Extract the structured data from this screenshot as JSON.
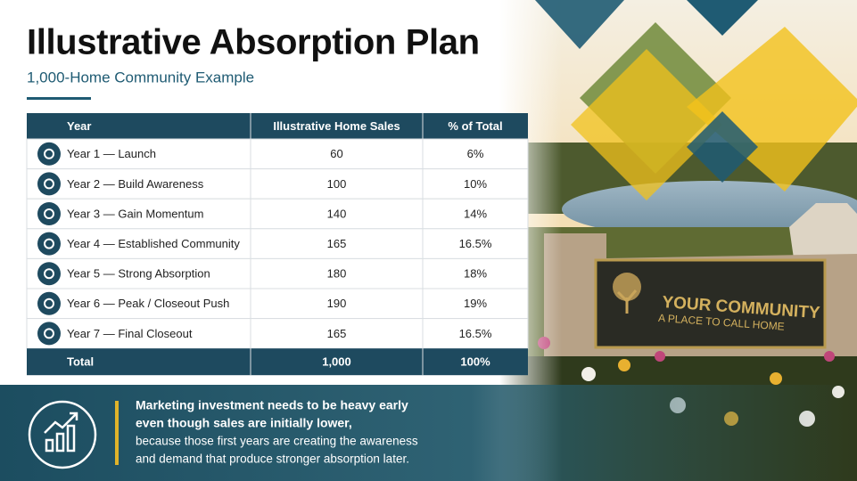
{
  "header": {
    "title": "Illustrative Absorption Plan",
    "subtitle": "1,000-Home Community Example"
  },
  "table": {
    "columns": [
      "Year",
      "Illustrative Home Sales",
      "% of Total"
    ],
    "rows": [
      [
        "Year 1 — Launch",
        "60",
        "6%"
      ],
      [
        "Year 2 — Build Awareness",
        "100",
        "10%"
      ],
      [
        "Year 3 — Gain Momentum",
        "140",
        "14%"
      ],
      [
        "Year 4 — Established Community",
        "165",
        "16.5%"
      ],
      [
        "Year 5 — Strong Absorption",
        "180",
        "18%"
      ],
      [
        "Year 6 — Peak / Closeout Push",
        "190",
        "19%"
      ],
      [
        "Year 7 — Final Closeout",
        "165",
        "16.5%"
      ]
    ],
    "total": [
      "Total",
      "1,000",
      "100%"
    ]
  },
  "callout": {
    "bold": [
      "Marketing investment needs to be heavy early",
      "even though sales are initially lower,"
    ],
    "text": [
      "because those first years are creating the awareness",
      "and demand that produce stronger absorption later."
    ]
  },
  "sign": {
    "name": "YOUR COMMUNITY",
    "tagline": "A PLACE TO CALL HOME"
  }
}
